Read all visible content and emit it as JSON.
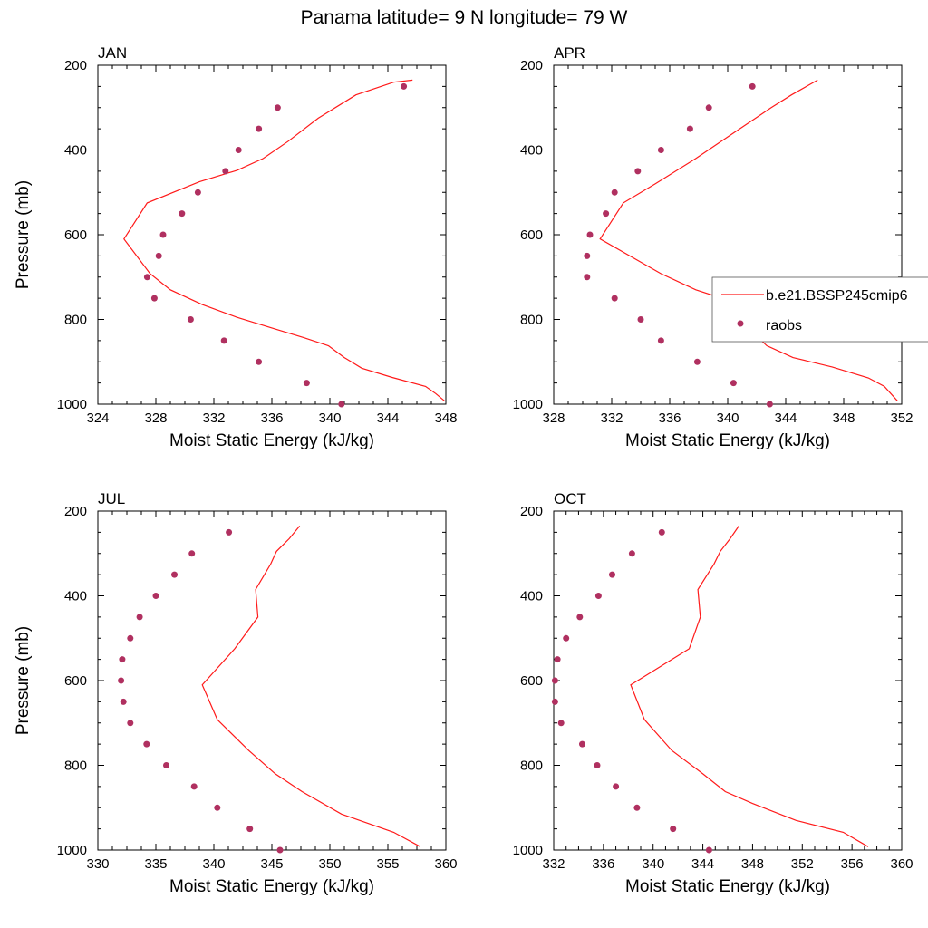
{
  "title": "Panama  latitude= 9 N longitude= 79 W",
  "colors": {
    "model": "#ff1a1a",
    "obs": "#b03060"
  },
  "legend": {
    "placement": "right-middle of APR panel",
    "entries": [
      {
        "label": "b.e21.BSSP245cmip6",
        "marker": "line"
      },
      {
        "label": "raobs",
        "marker": "dot"
      }
    ]
  },
  "chart_data": [
    {
      "type": "line",
      "panel_title": "JAN",
      "xlabel": "Moist Static Energy (kJ/kg)",
      "ylabel": "Pressure (mb)",
      "xlim": [
        324,
        348
      ],
      "ylim": [
        200,
        1000
      ],
      "y_inverted": true,
      "xticks": [
        324,
        328,
        332,
        336,
        340,
        344,
        348
      ],
      "yticks": [
        200,
        400,
        600,
        800,
        1000
      ],
      "series": [
        {
          "name": "b.e21.BSSP245cmip6",
          "kind": "line",
          "x": [
            347.9,
            347.3,
            346.6,
            344.3,
            342.2,
            341.0,
            339.9,
            338.2,
            336.0,
            333.6,
            331.2,
            329.0,
            327.6,
            325.8,
            327.4,
            331.0,
            333.6,
            335.4,
            337.1,
            339.2,
            341.8,
            344.4,
            345.7
          ],
          "y": [
            992,
            975,
            958,
            937,
            915,
            890,
            862,
            843,
            820,
            795,
            765,
            730,
            692,
            610,
            525,
            475,
            448,
            420,
            380,
            325,
            270,
            240,
            235
          ]
        },
        {
          "name": "raobs",
          "kind": "scatter",
          "x": [
            340.8,
            338.4,
            335.1,
            332.7,
            330.4,
            327.9,
            327.4,
            328.2,
            328.5,
            329.8,
            330.9,
            332.8,
            333.7,
            335.1,
            336.4,
            345.1
          ],
          "y": [
            1000,
            950,
            900,
            850,
            800,
            750,
            700,
            650,
            600,
            550,
            500,
            450,
            400,
            350,
            300,
            250
          ]
        }
      ]
    },
    {
      "type": "line",
      "panel_title": "APR",
      "xlabel": "Moist Static Energy (kJ/kg)",
      "ylabel": "",
      "xlim": [
        328,
        352
      ],
      "ylim": [
        200,
        1000
      ],
      "y_inverted": true,
      "xticks": [
        328,
        332,
        336,
        340,
        344,
        348,
        352
      ],
      "yticks": [
        200,
        400,
        600,
        800,
        1000
      ],
      "series": [
        {
          "name": "b.e21.BSSP245cmip6",
          "kind": "line",
          "x": [
            351.7,
            350.8,
            349.7,
            347.2,
            344.5,
            342.7,
            341.4,
            340.5,
            337.8,
            335.4,
            331.2,
            332.8,
            335.0,
            337.8,
            340.4,
            343.0,
            344.4,
            346.2
          ],
          "y": [
            992,
            958,
            938,
            912,
            890,
            862,
            820,
            760,
            730,
            692,
            610,
            525,
            480,
            420,
            360,
            300,
            270,
            235
          ]
        },
        {
          "name": "raobs",
          "kind": "scatter",
          "x": [
            342.9,
            340.4,
            337.9,
            335.4,
            334.0,
            332.2,
            330.3,
            330.3,
            330.5,
            331.6,
            332.2,
            333.8,
            335.4,
            337.4,
            338.7,
            341.7
          ],
          "y": [
            1000,
            950,
            900,
            850,
            800,
            750,
            700,
            650,
            600,
            550,
            500,
            450,
            400,
            350,
            300,
            250
          ]
        }
      ]
    },
    {
      "type": "line",
      "panel_title": "JUL",
      "xlabel": "Moist Static Energy (kJ/kg)",
      "ylabel": "Pressure (mb)",
      "xlim": [
        330,
        360
      ],
      "ylim": [
        200,
        1000
      ],
      "y_inverted": true,
      "xticks": [
        330,
        335,
        340,
        345,
        350,
        355,
        360
      ],
      "yticks": [
        200,
        400,
        600,
        800,
        1000
      ],
      "series": [
        {
          "name": "b.e21.BSSP245cmip6",
          "kind": "line",
          "x": [
            357.8,
            355.5,
            351.0,
            347.6,
            345.3,
            343.0,
            340.3,
            339.0,
            341.8,
            343.8,
            343.6,
            344.9,
            345.4,
            346.5,
            347.4
          ],
          "y": [
            992,
            958,
            915,
            862,
            820,
            765,
            692,
            610,
            525,
            450,
            385,
            325,
            295,
            265,
            235
          ]
        },
        {
          "name": "raobs",
          "kind": "scatter",
          "x": [
            345.7,
            343.1,
            340.3,
            338.3,
            335.9,
            334.2,
            332.8,
            332.2,
            332.0,
            332.1,
            332.8,
            333.6,
            335.0,
            336.6,
            338.1,
            341.3
          ],
          "y": [
            1000,
            950,
            900,
            850,
            800,
            750,
            700,
            650,
            600,
            550,
            500,
            450,
            400,
            350,
            300,
            250
          ]
        }
      ]
    },
    {
      "type": "line",
      "panel_title": "OCT",
      "xlabel": "Moist Static Energy (kJ/kg)",
      "ylabel": "",
      "xlim": [
        332,
        360
      ],
      "ylim": [
        200,
        1000
      ],
      "y_inverted": true,
      "xticks": [
        332,
        336,
        340,
        344,
        348,
        352,
        356,
        360
      ],
      "yticks": [
        200,
        400,
        600,
        800,
        1000
      ],
      "series": [
        {
          "name": "b.e21.BSSP245cmip6",
          "kind": "line",
          "x": [
            357.3,
            355.3,
            351.5,
            348.0,
            345.8,
            344.0,
            341.5,
            339.3,
            338.2,
            342.9,
            343.8,
            343.6,
            344.9,
            345.4,
            346.2,
            346.9
          ],
          "y": [
            992,
            958,
            930,
            890,
            862,
            820,
            765,
            692,
            610,
            525,
            450,
            385,
            325,
            295,
            265,
            235
          ]
        },
        {
          "name": "raobs",
          "kind": "scatter",
          "x": [
            344.5,
            341.6,
            338.7,
            337.0,
            335.5,
            334.3,
            332.6,
            332.1,
            332.1,
            332.3,
            333.0,
            334.1,
            335.6,
            336.7,
            338.3,
            340.7
          ],
          "y": [
            1000,
            950,
            900,
            850,
            800,
            750,
            700,
            650,
            600,
            550,
            500,
            450,
            400,
            350,
            300,
            250
          ]
        }
      ]
    }
  ]
}
